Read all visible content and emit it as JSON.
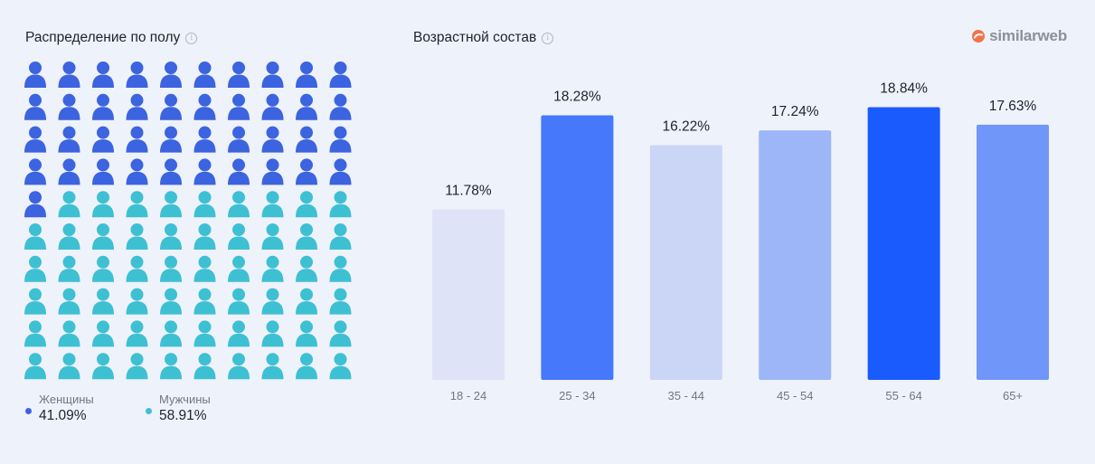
{
  "gender_panel": {
    "title": "Распределение по полу",
    "info_glyph": "i",
    "legend": [
      {
        "label": "Женщины",
        "value": "41.09%",
        "color": "#3c63e0"
      },
      {
        "label": "Мужчины",
        "value": "58.91%",
        "color": "#3ec0d3"
      }
    ]
  },
  "age_panel": {
    "title": "Возрастной состав",
    "info_glyph": "i"
  },
  "logo": {
    "text": "similarweb",
    "icon": "similarweb-logo-icon"
  },
  "chart_data": [
    {
      "type": "pictograph",
      "total_icons": 100,
      "series": [
        {
          "name": "Женщины",
          "value": 41.09,
          "color": "#3c63e0"
        },
        {
          "name": "Мужчины",
          "value": 58.91,
          "color": "#3ec0d3"
        }
      ]
    },
    {
      "type": "bar",
      "categories": [
        "18 - 24",
        "25 - 34",
        "35 - 44",
        "45 - 54",
        "55 - 64",
        "65+"
      ],
      "values": [
        11.78,
        18.28,
        16.22,
        17.24,
        18.84,
        17.63
      ],
      "labels": [
        "11.78%",
        "18.28%",
        "16.22%",
        "17.24%",
        "18.84%",
        "17.63%"
      ],
      "colors": [
        "#dfe3f7",
        "#4578fb",
        "#cbd5f6",
        "#9db6f8",
        "#1a5bfe",
        "#7096f9"
      ],
      "ylim": [
        0,
        20
      ]
    }
  ]
}
